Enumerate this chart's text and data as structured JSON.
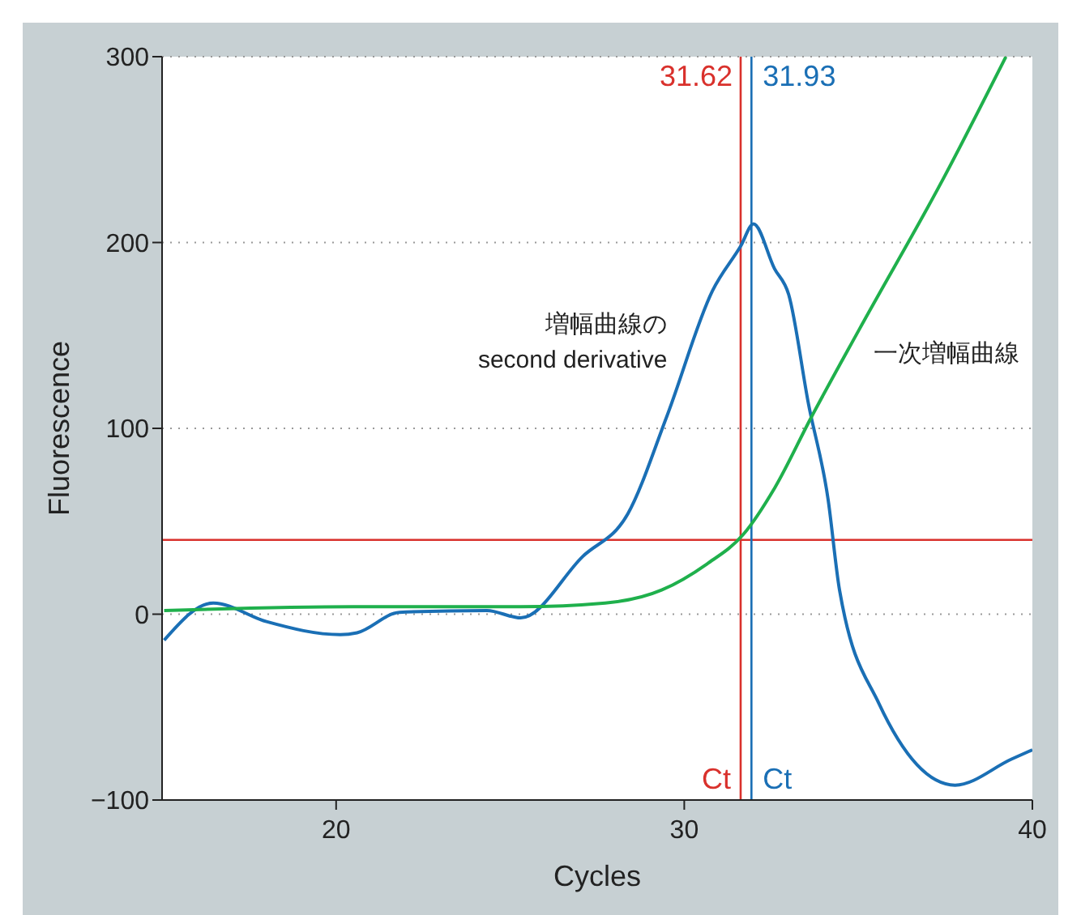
{
  "chart_data": {
    "type": "line",
    "xlabel": "Cycles",
    "ylabel": "Fluorescence",
    "xlim": [
      15,
      40
    ],
    "xticks": [
      20,
      30,
      40
    ],
    "ylim": [
      -100,
      300
    ],
    "yticks": [
      {
        "value": -100,
        "label": "−100"
      },
      0,
      100,
      200,
      300
    ],
    "grid": "y",
    "marker": "none",
    "line_style": "solid",
    "series": [
      {
        "name": "増幅曲線の\nsecond derivative",
        "color": "#1a6fb5",
        "x": [
          15.06,
          16.47,
          18.0,
          20.12,
          20.6,
          21.82,
          24.33,
          25.3,
          27.08,
          28.38,
          29.51,
          30.81,
          31.62,
          31.99,
          32.59,
          33.0,
          33.57,
          34.13,
          34.46,
          35.59,
          37.78,
          39.4,
          40.0
        ],
        "values": [
          -14,
          6,
          -4,
          -11,
          -10,
          1,
          2,
          -2,
          31,
          54,
          107,
          174,
          198,
          210,
          186,
          172,
          113,
          62,
          13,
          -48,
          -92,
          -78,
          -73
        ]
      },
      {
        "name": "一次増幅曲線",
        "color": "#1fb04c",
        "x": [
          15.06,
          20.5,
          25.3,
          27.73,
          29.35,
          30.65,
          31.7,
          32.6,
          33.65,
          35.02,
          37.46,
          39.24
        ],
        "values": [
          2,
          4,
          4,
          6,
          13,
          27,
          43,
          68,
          106,
          153,
          235,
          300
        ]
      }
    ],
    "ref_lines": [
      {
        "axis": "y",
        "value": 40,
        "color": "#d9312c"
      },
      {
        "axis": "x",
        "value": 31.62,
        "label": "31.62",
        "color": "#d9312c"
      },
      {
        "axis": "x",
        "value": 31.93,
        "label": "31.93",
        "color": "#1a6fb5"
      }
    ],
    "annotations": [
      {
        "text": "Ct",
        "x": 31.62,
        "y": -100
      },
      {
        "text": "Ct",
        "x": 31.93,
        "y": -100
      }
    ]
  }
}
